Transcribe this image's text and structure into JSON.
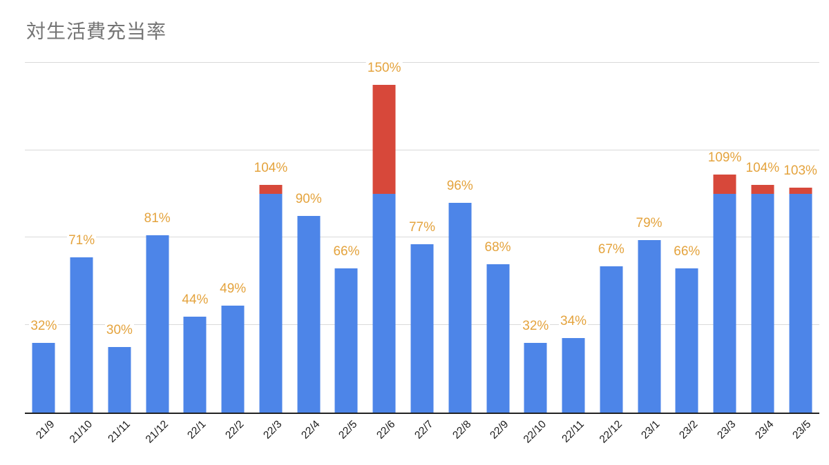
{
  "title": "対生活費充当率",
  "chart_data": {
    "type": "bar",
    "title": "対生活費充当率",
    "categories": [
      "21/9",
      "21/10",
      "21/11",
      "21/12",
      "22/1",
      "22/2",
      "22/3",
      "22/4",
      "22/5",
      "22/6",
      "22/7",
      "22/8",
      "22/9",
      "22/10",
      "22/11",
      "22/12",
      "23/1",
      "23/2",
      "23/3",
      "23/4",
      "23/5"
    ],
    "values": [
      32,
      71,
      30,
      81,
      44,
      49,
      104,
      90,
      66,
      150,
      77,
      96,
      68,
      32,
      34,
      67,
      79,
      66,
      109,
      104,
      103
    ],
    "labels": [
      "32%",
      "71%",
      "30%",
      "81%",
      "44%",
      "49%",
      "104%",
      "90%",
      "66%",
      "150%",
      "77%",
      "96%",
      "68%",
      "32%",
      "34%",
      "67%",
      "79%",
      "66%",
      "109%",
      "104%",
      "103%"
    ],
    "unit": "%",
    "ylim": [
      0,
      160
    ],
    "gridlines": [
      40,
      80,
      120,
      160
    ],
    "grid": true,
    "legend_position": "none",
    "xlabel": "",
    "ylabel": "",
    "threshold": 100,
    "colors": {
      "bar": "#4d85e8",
      "bar_over_threshold": "#d7483a",
      "value_label": "#e4a33d",
      "axis": "#212121",
      "gridline": "#d9d9d9",
      "title": "#757575",
      "x_tick_label": "#1a1a1a"
    }
  }
}
